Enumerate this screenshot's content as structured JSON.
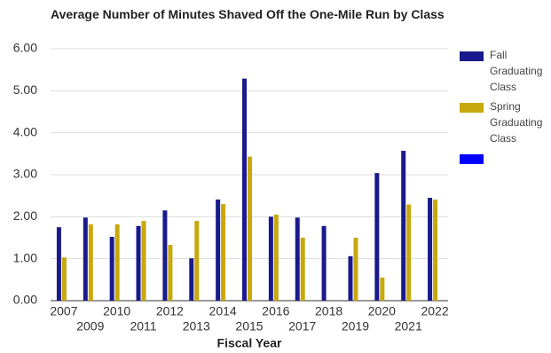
{
  "chart_data": {
    "type": "bar",
    "title": "Average Number of Minutes Shaved Off the One-Mile Run by Class",
    "x_label": "Fiscal Year",
    "categories": [
      "2007",
      "2009",
      "2010",
      "2011",
      "2012",
      "2013",
      "2014",
      "2015",
      "2016",
      "2017",
      "2018",
      "2019",
      "2020",
      "2021",
      "2022"
    ],
    "series": [
      {
        "name": "Fall Graduating Class",
        "color": "#1a1a8c",
        "values": [
          1.75,
          1.98,
          1.52,
          1.78,
          2.15,
          1.01,
          2.41,
          5.29,
          2.0,
          1.98,
          1.78,
          1.06,
          3.04,
          3.57,
          2.45
        ]
      },
      {
        "name": "Spring Graduating Class",
        "color": "#c8a80e",
        "values": [
          1.03,
          1.82,
          1.82,
          1.9,
          1.33,
          1.9,
          2.3,
          3.43,
          2.05,
          1.5,
          null,
          1.5,
          0.55,
          2.29,
          2.41
        ]
      }
    ],
    "ylim": [
      0,
      6
    ],
    "yticks": [
      {
        "value": 0,
        "label": "0.00"
      },
      {
        "value": 1,
        "label": "1.00"
      },
      {
        "value": 2,
        "label": "2.00"
      },
      {
        "value": 3,
        "label": "3.00"
      },
      {
        "value": 4,
        "label": "4.00"
      },
      {
        "value": 5,
        "label": "5.00"
      },
      {
        "value": 6,
        "label": "6.00"
      }
    ],
    "grid": true
  }
}
